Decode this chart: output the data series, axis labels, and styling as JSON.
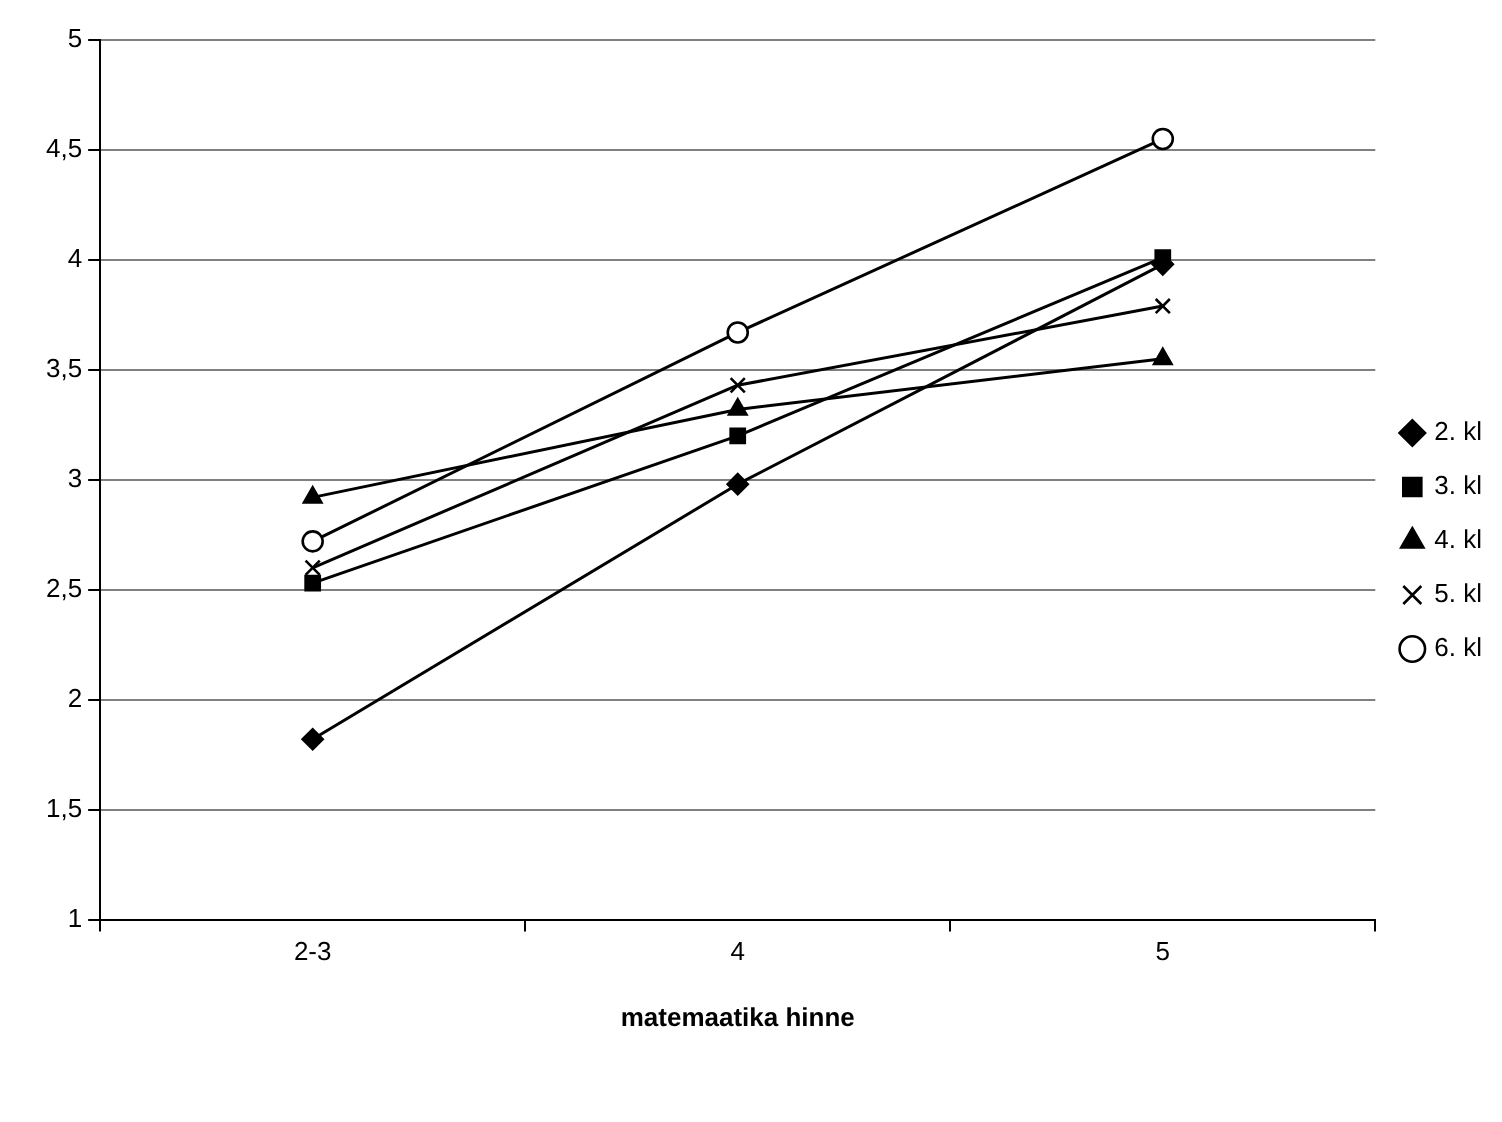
{
  "chart_data": {
    "type": "line",
    "xlabel": "matemaatika hinne",
    "categories": [
      "2-3",
      "4",
      "5"
    ],
    "series": [
      {
        "name": "2. kl",
        "color": "#000000",
        "marker": "diamond",
        "values": [
          1.82,
          2.98,
          3.98
        ]
      },
      {
        "name": "3. kl",
        "color": "#000000",
        "marker": "square",
        "values": [
          2.53,
          3.2,
          4.01
        ]
      },
      {
        "name": "4. kl",
        "color": "#000000",
        "marker": "triangle",
        "values": [
          2.92,
          3.32,
          3.55
        ]
      },
      {
        "name": "5. kl",
        "color": "#000000",
        "marker": "cross",
        "values": [
          2.6,
          3.43,
          3.79
        ]
      },
      {
        "name": "6. kl",
        "color": "#000000",
        "marker": "circle",
        "values": [
          2.72,
          3.67,
          4.55
        ]
      }
    ],
    "ylim": [
      1,
      5
    ],
    "yticks": [
      {
        "value": 1,
        "label": "1"
      },
      {
        "value": 1.5,
        "label": "1,5"
      },
      {
        "value": 2,
        "label": "2"
      },
      {
        "value": 2.5,
        "label": "2,5"
      },
      {
        "value": 3,
        "label": "3"
      },
      {
        "value": 3.5,
        "label": "3,5"
      },
      {
        "value": 4,
        "label": "4"
      },
      {
        "value": 4.5,
        "label": "4,5"
      },
      {
        "value": 5,
        "label": "5"
      }
    ],
    "grid": "y",
    "legend": "right",
    "line_style": "solid"
  }
}
